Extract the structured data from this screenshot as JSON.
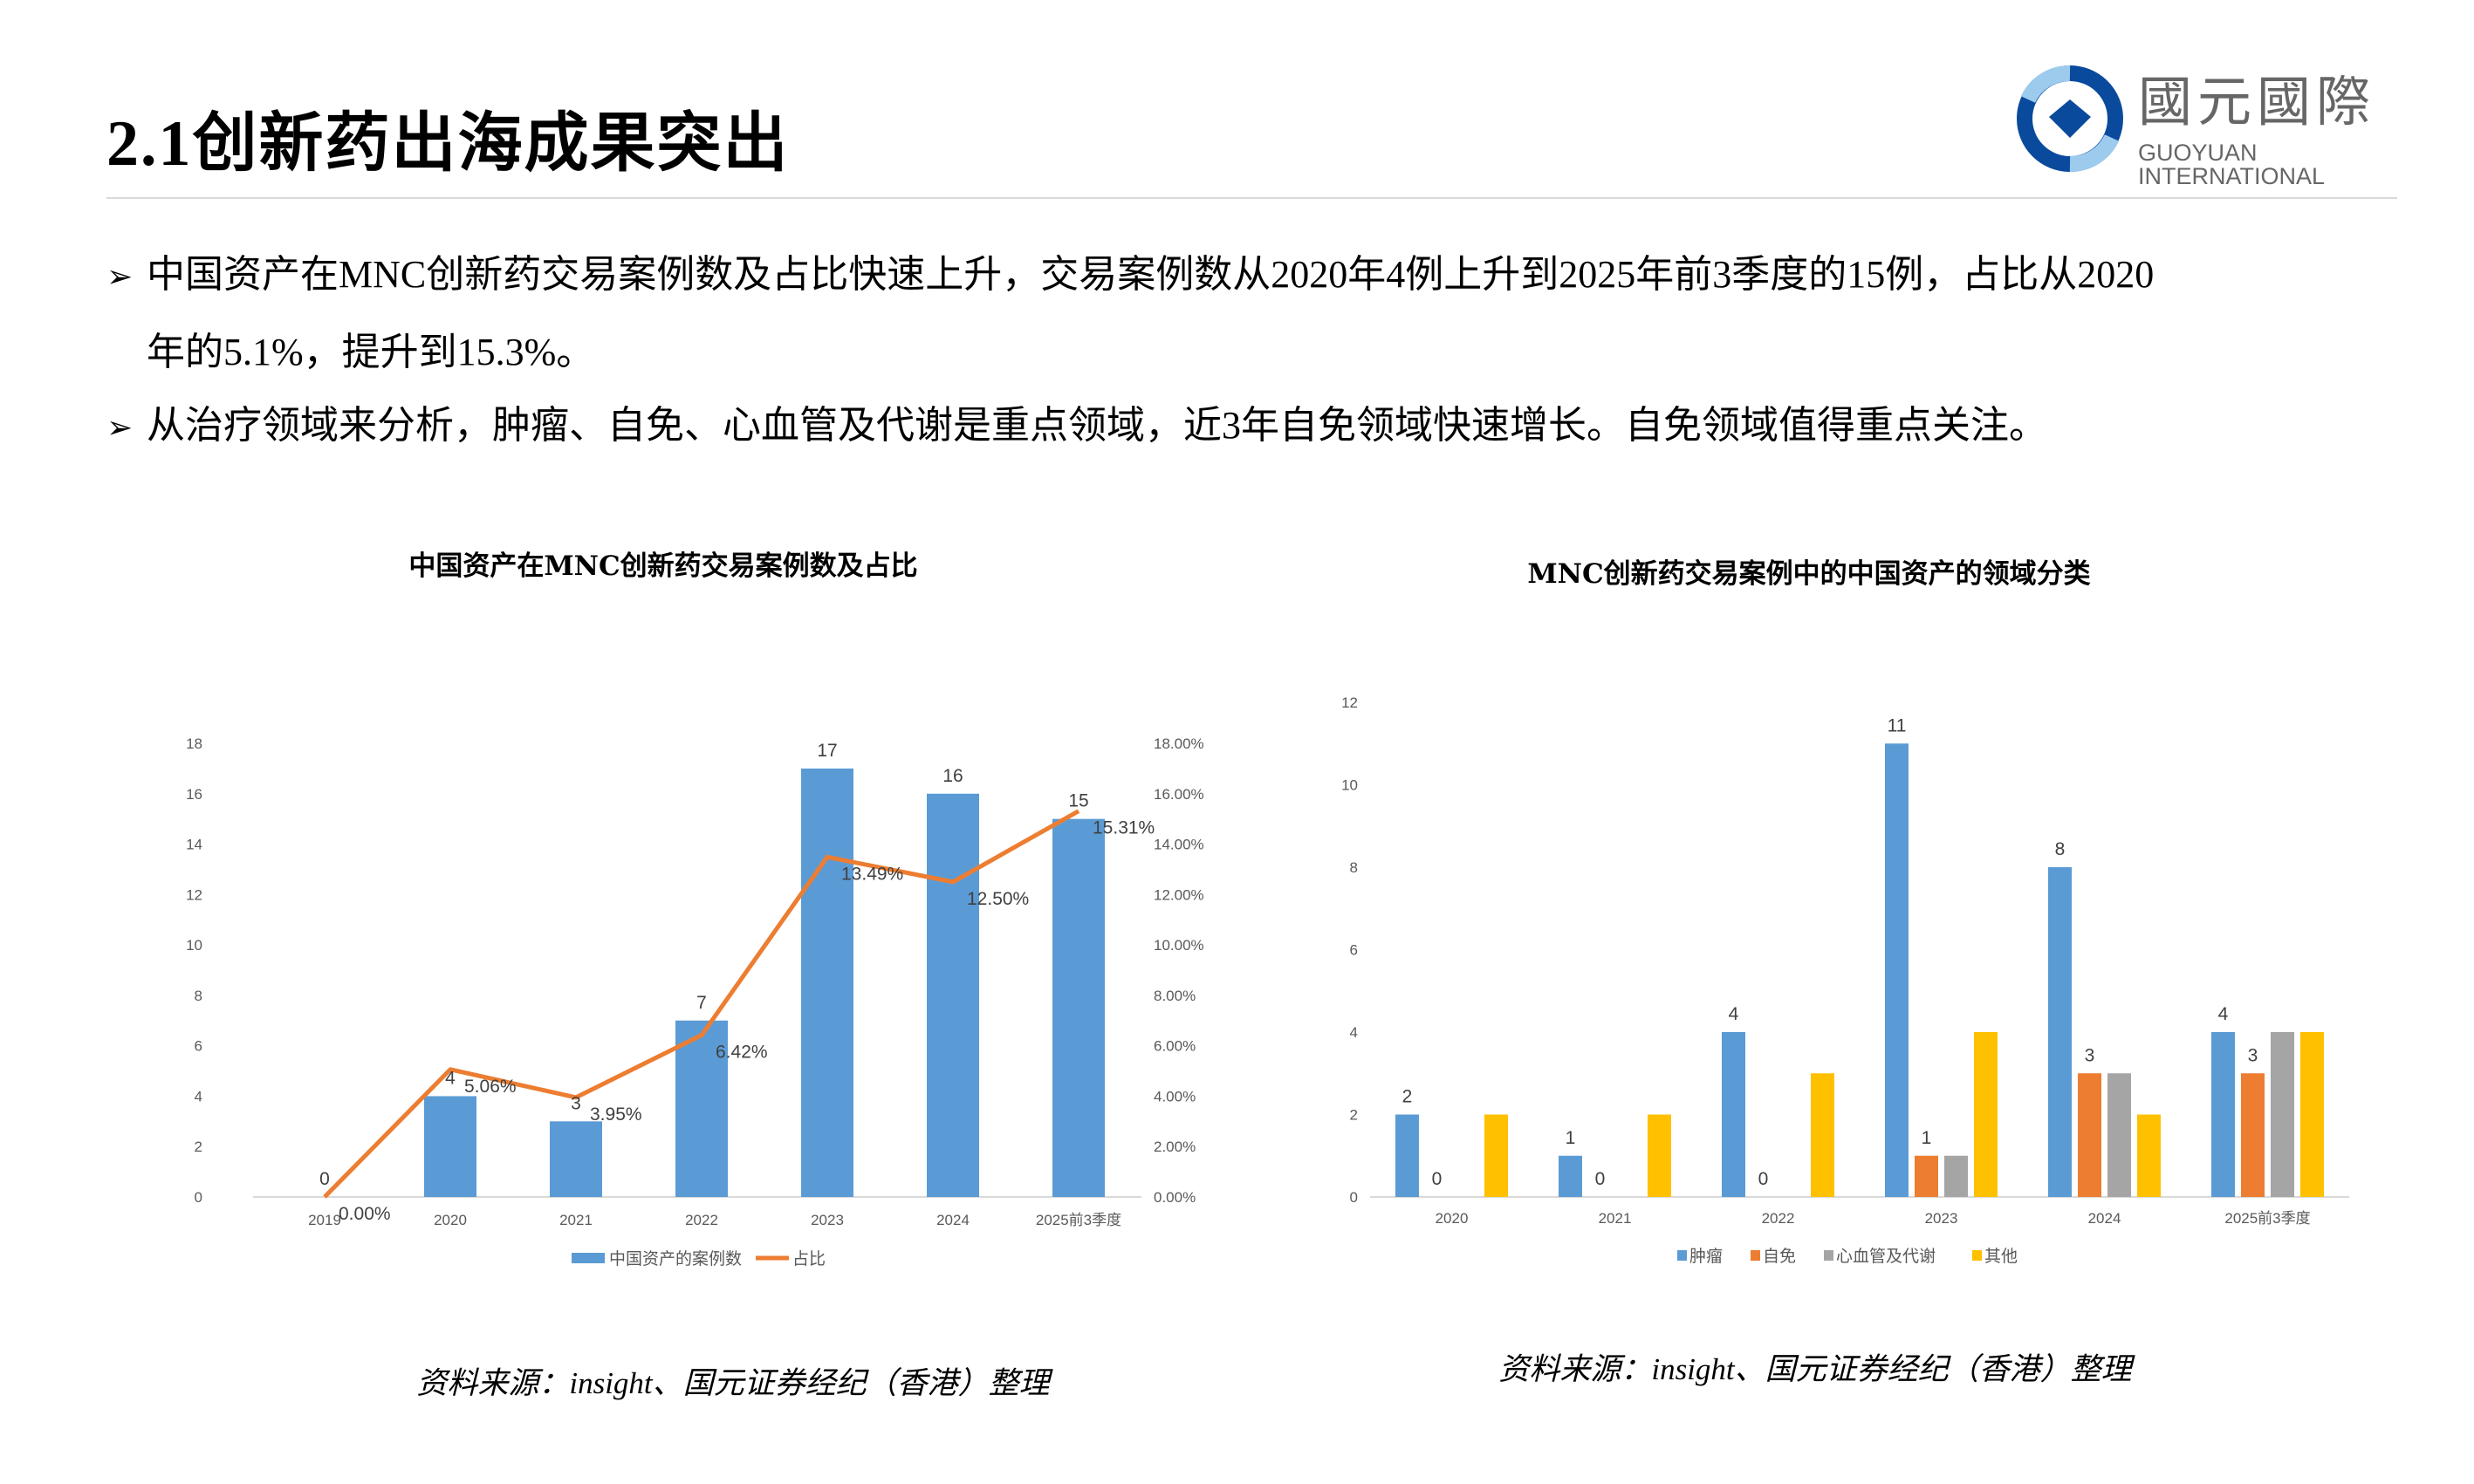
{
  "header": {
    "title": "2.1创新药出海成果突出",
    "logo": {
      "cn": "國元國際",
      "en": "GUOYUAN INTERNATIONAL"
    }
  },
  "bullets": [
    {
      "marker": "➢",
      "line1": "中国资产在MNC创新药交易案例数及占比快速上升，交易案例数从2020年4例上升到2025年前3季度的15例，占比从2020",
      "line2": "年的5.1%，提升到15.3%。"
    },
    {
      "marker": "➢",
      "line1": "从治疗领域来分析，肿瘤、自免、心血管及代谢是重点领域，近3年自免领域快速增长。自免领域值得重点关注。"
    }
  ],
  "colors": {
    "blue": "#5B9BD5",
    "orange": "#ED7D31",
    "gray": "#A5A5A5",
    "yellow": "#FFC000"
  },
  "chart_data": [
    {
      "type": "bar",
      "title": "中国资产在MNC创新药交易案例数及占比",
      "categories": [
        "2019",
        "2020",
        "2021",
        "2022",
        "2023",
        "2024",
        "2025前3季度"
      ],
      "series": [
        {
          "name": "中国资产的案例数",
          "type": "bar",
          "axis": "left",
          "values": [
            0,
            4,
            3,
            7,
            17,
            16,
            15
          ],
          "labels": [
            "0",
            "4",
            "3",
            "7",
            "17",
            "16",
            "15"
          ]
        },
        {
          "name": "占比",
          "type": "line",
          "axis": "right",
          "values": [
            0.0,
            5.06,
            3.95,
            6.42,
            13.49,
            12.5,
            15.31
          ],
          "labels": [
            "0.00%",
            "5.06%",
            "3.95%",
            "6.42%",
            "13.49%",
            "12.50%",
            "15.31%"
          ]
        }
      ],
      "ylim": [
        0,
        18
      ],
      "yticks": [
        "0",
        "2",
        "4",
        "6",
        "8",
        "10",
        "12",
        "14",
        "16",
        "18"
      ],
      "y2lim": [
        0,
        18
      ],
      "y2ticks": [
        "0.00%",
        "2.00%",
        "4.00%",
        "6.00%",
        "8.00%",
        "10.00%",
        "12.00%",
        "14.00%",
        "16.00%",
        "18.00%"
      ],
      "legend": "bottom",
      "grid": false,
      "source": "资料来源：insight、国元证券经纪（香港）整理"
    },
    {
      "type": "bar",
      "title": "MNC创新药交易案例中的中国资产的领域分类",
      "categories": [
        "2020",
        "2021",
        "2022",
        "2023",
        "2024",
        "2025前3季度"
      ],
      "series": [
        {
          "name": "肿瘤",
          "values": [
            2,
            1,
            4,
            11,
            8,
            4
          ],
          "labels": [
            "2",
            "1",
            "4",
            "11",
            "8",
            "4"
          ]
        },
        {
          "name": "自免",
          "values": [
            0,
            0,
            0,
            1,
            3,
            3
          ],
          "labels": [
            "0",
            "0",
            "0",
            "1",
            "3",
            "3"
          ]
        },
        {
          "name": "心血管及代谢",
          "values": [
            0,
            0,
            0,
            1,
            3,
            4
          ]
        },
        {
          "name": "其他",
          "values": [
            2,
            2,
            3,
            4,
            2,
            4
          ]
        }
      ],
      "ylim": [
        0,
        12
      ],
      "yticks": [
        "0",
        "2",
        "4",
        "6",
        "8",
        "10",
        "12"
      ],
      "legend": "bottom",
      "grid": false,
      "source": "资料来源：insight、国元证券经纪（香港）整理"
    }
  ]
}
